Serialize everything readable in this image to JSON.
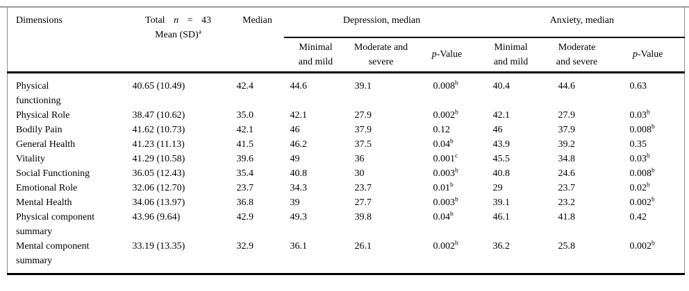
{
  "colors": {
    "background": "#ffffff",
    "rule": "#000000",
    "side_frame": "#8c8c8c",
    "page_top_edge": "#9a9a9a",
    "text": "#000000"
  },
  "table": {
    "header": {
      "dimensions": "Dimensions",
      "total": {
        "pre": "Total",
        "n": "n",
        "eq": "=",
        "num": "43",
        "line2": "Mean (SD)^a"
      },
      "median": "Median",
      "groups": [
        {
          "label": "Depression, median"
        },
        {
          "label": "Anxiety, median"
        }
      ],
      "sub": {
        "dep_min": "Minimal\nand mild",
        "dep_mod": "Moderate and\nsevere",
        "anx_min": "Minimal\nand mild",
        "anx_mod": "Moderate\nand severe",
        "p": {
          "italic": "p",
          "rest": "-Value"
        }
      }
    },
    "rows": [
      {
        "dim": "Physical\nfunctioning",
        "mean_sd": "40.65 (10.49)",
        "median": "42.4",
        "dep_min": "44.6",
        "dep_mod": "39.1",
        "dep_p": "0.008^b",
        "anx_min": "40.4",
        "anx_mod": "44.6",
        "anx_p": "0.63"
      },
      {
        "dim": "Physical Role",
        "mean_sd": "38.47 (10.62)",
        "median": "35.0",
        "dep_min": "42.1",
        "dep_mod": "27.9",
        "dep_p": "0.002^b",
        "anx_min": "42.1",
        "anx_mod": "27.9",
        "anx_p": "0.03^b"
      },
      {
        "dim": "Bodily Pain",
        "mean_sd": "41.62 (10.73)",
        "median": "42.1",
        "dep_min": "46",
        "dep_mod": "37.9",
        "dep_p": "0.12",
        "anx_min": "46",
        "anx_mod": "37.9",
        "anx_p": "0.008^b"
      },
      {
        "dim": "General Health",
        "mean_sd": "41.23 (11.13)",
        "median": "41.5",
        "dep_min": "46.2",
        "dep_mod": "37.5",
        "dep_p": "0.04^b",
        "anx_min": "43.9",
        "anx_mod": "39.2",
        "anx_p": "0.35"
      },
      {
        "dim": "Vitality",
        "mean_sd": "41.29 (10.58)",
        "median": "39.6",
        "dep_min": "49",
        "dep_mod": "36",
        "dep_p": "0.001^c",
        "anx_min": "45.5",
        "anx_mod": "34.8",
        "anx_p": "0.03^b"
      },
      {
        "dim": "Social Functioning",
        "mean_sd": "36.05 (12.43)",
        "median": "35.4",
        "dep_min": "40.8",
        "dep_mod": "30",
        "dep_p": "0.003^b",
        "anx_min": "40.8",
        "anx_mod": "24.6",
        "anx_p": "0.008^b"
      },
      {
        "dim": "Emotional Role",
        "mean_sd": "32.06 (12.70)",
        "median": "23.7",
        "dep_min": "34.3",
        "dep_mod": "23.7",
        "dep_p": "0.01^b",
        "anx_min": "29",
        "anx_mod": "23.7",
        "anx_p": "0.02^b"
      },
      {
        "dim": "Mental Health",
        "mean_sd": "34.06 (13.97)",
        "median": "36.8",
        "dep_min": "39",
        "dep_mod": "27.7",
        "dep_p": "0.003^b",
        "anx_min": "39.1",
        "anx_mod": "23.2",
        "anx_p": "0.002^b"
      },
      {
        "dim": "Physical component\nsummary",
        "mean_sd": "43.96 (9.64)",
        "median": "42.9",
        "dep_min": "49.3",
        "dep_mod": "39.8",
        "dep_p": "0.04^b",
        "anx_min": "46.1",
        "anx_mod": "41.8",
        "anx_p": "0.42"
      },
      {
        "dim": "Mental component\nsummary",
        "mean_sd": "33.19 (13.35)",
        "median": "32.9",
        "dep_min": "36.1",
        "dep_mod": "26.1",
        "dep_p": "0.002^b",
        "anx_min": "36.2",
        "anx_mod": "25.8",
        "anx_p": "0.002^b"
      }
    ]
  }
}
